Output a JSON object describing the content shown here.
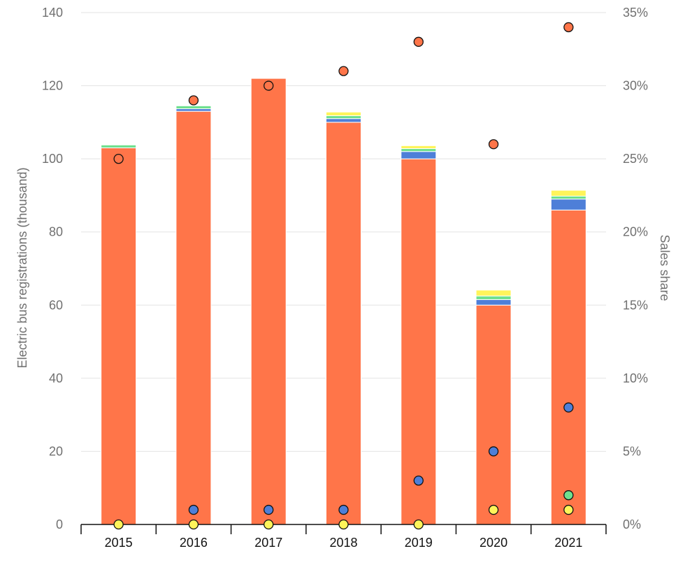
{
  "chart_data": {
    "type": "bar",
    "stacked": true,
    "categories": [
      "2015",
      "2016",
      "2017",
      "2018",
      "2019",
      "2020",
      "2021"
    ],
    "ylabel": "Electric bus registrations (thousand)",
    "y2label": "Sales share",
    "ylim": [
      0,
      140
    ],
    "y2lim": [
      0,
      35
    ],
    "yticks": [
      "0",
      "20",
      "40",
      "60",
      "80",
      "100",
      "120",
      "140"
    ],
    "y2ticks": [
      "0%",
      "5%",
      "10%",
      "15%",
      "20%",
      "25%",
      "30%",
      "35%"
    ],
    "grid": true,
    "bar_series": [
      {
        "color": "#ff7549",
        "values": [
          103,
          113,
          122,
          110,
          100,
          60,
          86
        ]
      },
      {
        "color": "#4e7fd8",
        "values": [
          0,
          0.7,
          0,
          1,
          2,
          1.5,
          3
        ]
      },
      {
        "color": "#6fe08f",
        "values": [
          0.8,
          0.8,
          0,
          0.8,
          0.8,
          1,
          0.8
        ]
      },
      {
        "color": "#fff45a",
        "values": [
          0,
          0,
          0,
          1,
          0.8,
          1.6,
          1.6
        ]
      }
    ],
    "share_series": [
      {
        "color": "#ff7549",
        "values": [
          25,
          29,
          30,
          31,
          33,
          26,
          34
        ]
      },
      {
        "color": "#4e7fd8",
        "values": [
          null,
          1,
          1,
          1,
          3,
          5,
          8
        ]
      },
      {
        "color": "#6fe08f",
        "values": [
          null,
          null,
          null,
          null,
          null,
          null,
          2
        ]
      },
      {
        "color": "#fff45a",
        "values": [
          0,
          0,
          0,
          0,
          0,
          1,
          1
        ]
      }
    ]
  }
}
